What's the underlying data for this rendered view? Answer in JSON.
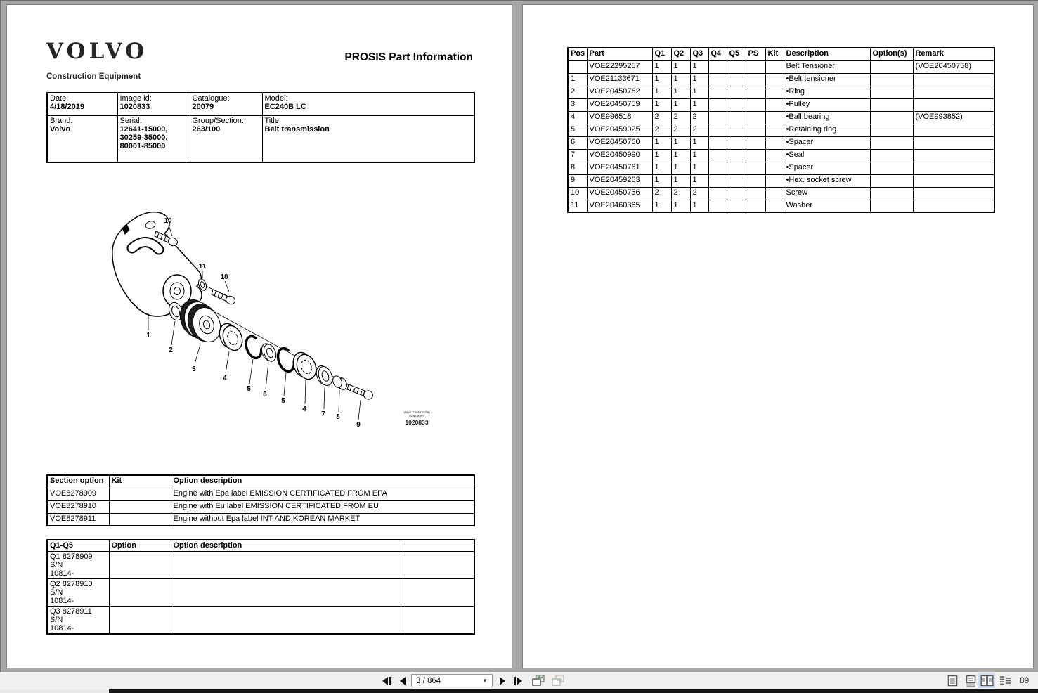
{
  "left_page": {
    "logo": "VOLVO",
    "logo_sub": "Construction Equipment",
    "title": "PROSIS Part Information",
    "info_table": {
      "date_label": "Date:",
      "date": "4/18/2019",
      "image_id_label": "Image id:",
      "image_id": "1020833",
      "catalogue_label": "Catalogue:",
      "catalogue": "20079",
      "model_label": "Model:",
      "model": "EC240B LC",
      "brand_label": "Brand:",
      "brand": "Volvo",
      "serial_label": "Serial:",
      "serial": "12641-15000,\n30259-35000,\n80001-85000",
      "group_label": "Group/Section:",
      "group": "263/100",
      "title_label": "Title:",
      "title": "Belt transmission"
    },
    "diagram": {
      "callouts": [
        "10",
        "11",
        "10",
        "1",
        "2",
        "3",
        "4",
        "5",
        "6",
        "5",
        "4",
        "7",
        "8",
        "9"
      ],
      "watermark_line1": "Volvo Construction",
      "watermark_line2": "Equipment",
      "image_number": "1020833"
    },
    "section_table": {
      "headers": [
        "Section option",
        "Kit",
        "Option description"
      ],
      "rows": [
        [
          "VOE8278909",
          "",
          "Engine with Epa label EMISSION CERTIFICATED FROM EPA"
        ],
        [
          "VOE8278910",
          "",
          "Engine with Eu label EMISSION CERTIFICATED FROM EU"
        ],
        [
          "VOE8278911",
          "",
          "Engine without Epa label INT AND KOREAN MARKET"
        ]
      ]
    },
    "q_table": {
      "headers": [
        "Q1-Q5",
        "Option",
        "Option description",
        ""
      ],
      "rows": [
        [
          "Q1 8278909 S/N\n10814-",
          "",
          "",
          ""
        ],
        [
          "Q2 8278910 S/N\n10814-",
          "",
          "",
          ""
        ],
        [
          "Q3 8278911 S/N\n10814-",
          "",
          "",
          ""
        ]
      ]
    }
  },
  "right_page": {
    "parts_table": {
      "headers": [
        "Pos",
        "Part",
        "Q1",
        "Q2",
        "Q3",
        "Q4",
        "Q5",
        "PS",
        "Kit",
        "Description",
        "Option(s)",
        "Remark"
      ],
      "rows": [
        [
          "",
          "VOE22295257",
          "1",
          "1",
          "1",
          "",
          "",
          "",
          "",
          "Belt Tensioner",
          "",
          "(VOE20450758)"
        ],
        [
          "1",
          "VOE21133671",
          "1",
          "1",
          "1",
          "",
          "",
          "",
          "",
          "•Belt tensioner",
          "",
          ""
        ],
        [
          "2",
          "VOE20450762",
          "1",
          "1",
          "1",
          "",
          "",
          "",
          "",
          "•Ring",
          "",
          ""
        ],
        [
          "3",
          "VOE20450759",
          "1",
          "1",
          "1",
          "",
          "",
          "",
          "",
          "•Pulley",
          "",
          ""
        ],
        [
          "4",
          "VOE996518",
          "2",
          "2",
          "2",
          "",
          "",
          "",
          "",
          "•Ball bearing",
          "",
          "(VOE993852)"
        ],
        [
          "5",
          "VOE20459025",
          "2",
          "2",
          "2",
          "",
          "",
          "",
          "",
          "•Retaining ring",
          "",
          ""
        ],
        [
          "6",
          "VOE20450760",
          "1",
          "1",
          "1",
          "",
          "",
          "",
          "",
          "•Spacer",
          "",
          ""
        ],
        [
          "7",
          "VOE20450990",
          "1",
          "1",
          "1",
          "",
          "",
          "",
          "",
          "•Seal",
          "",
          ""
        ],
        [
          "8",
          "VOE20450761",
          "1",
          "1",
          "1",
          "",
          "",
          "",
          "",
          "•Spacer",
          "",
          ""
        ],
        [
          "9",
          "VOE20459263",
          "1",
          "1",
          "1",
          "",
          "",
          "",
          "",
          "•Hex. socket screw",
          "",
          ""
        ],
        [
          "10",
          "VOE20450756",
          "2",
          "2",
          "2",
          "",
          "",
          "",
          "",
          "Screw",
          "",
          ""
        ],
        [
          "11",
          "VOE20460365",
          "1",
          "1",
          "1",
          "",
          "",
          "",
          "",
          "Washer",
          "",
          ""
        ]
      ]
    }
  },
  "toolbar": {
    "page_field": "3 / 864",
    "zoom_value": "89"
  }
}
